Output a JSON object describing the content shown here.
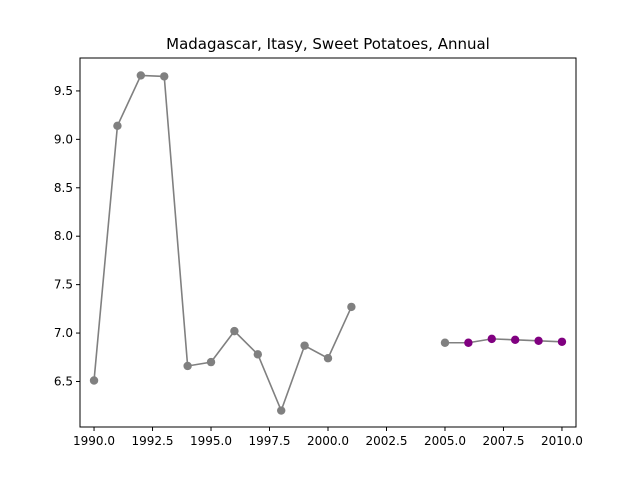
{
  "chart_data": {
    "type": "line",
    "title": "Madagascar, Itasy, Sweet Potatoes, Annual",
    "xlabel": "",
    "ylabel": "",
    "xlim": [
      1989.4,
      2010.6
    ],
    "ylim": [
      6.03,
      9.84
    ],
    "xticks": [
      1990.0,
      1992.5,
      1995.0,
      1997.5,
      2000.0,
      2002.5,
      2005.0,
      2007.5,
      2010.0
    ],
    "xtick_labels": [
      "1990.0",
      "1992.5",
      "1995.0",
      "1997.5",
      "2000.0",
      "2002.5",
      "2005.0",
      "2007.5",
      "2010.0"
    ],
    "yticks": [
      6.5,
      7.0,
      7.5,
      8.0,
      8.5,
      9.0,
      9.5
    ],
    "ytick_labels": [
      "6.5",
      "7.0",
      "7.5",
      "8.0",
      "8.5",
      "9.0",
      "9.5"
    ],
    "grid": false,
    "series": [
      {
        "color": "#808080",
        "marker_color": "#808080",
        "x": [
          1990,
          1991,
          1992,
          1993,
          1994,
          1995,
          1996,
          1997,
          1998,
          1999,
          2000,
          2001
        ],
        "y": [
          6.51,
          9.14,
          9.66,
          9.65,
          6.66,
          6.7,
          7.02,
          6.78,
          6.2,
          6.87,
          6.74,
          7.27
        ]
      },
      {
        "color": "#808080",
        "marker_color": "#800080",
        "first_marker_color": "#808080",
        "x": [
          2005,
          2006,
          2007,
          2008,
          2009,
          2010
        ],
        "y": [
          6.9,
          6.9,
          6.94,
          6.93,
          6.92,
          6.91
        ]
      }
    ]
  }
}
